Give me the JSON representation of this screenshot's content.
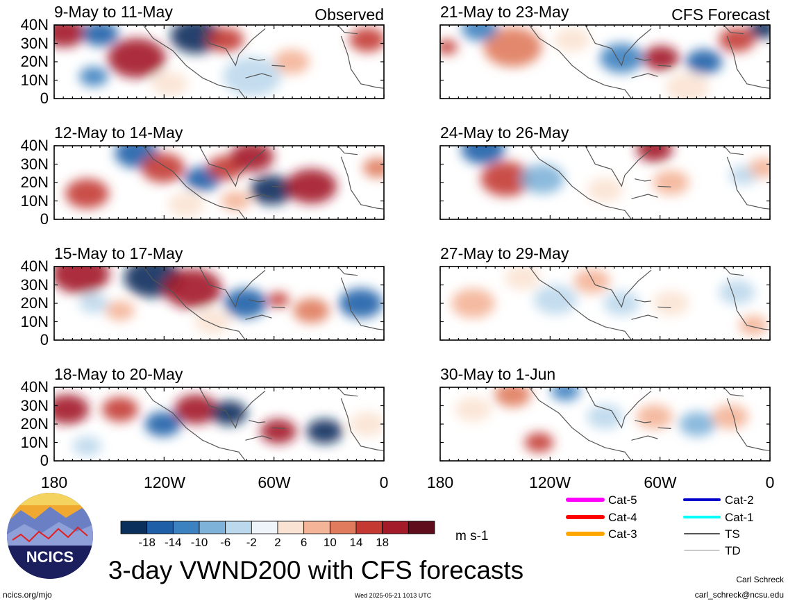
{
  "figure": {
    "title": "3-day VWND200 with CFS forecasts",
    "timestamp": "Wed 2025-05-21 1013 UTC",
    "site": "ncics.org/mjo",
    "author": "Carl Schreck",
    "email": "carl_schreck@ncsu.edu",
    "logo_text": "NCICS"
  },
  "column_labels": {
    "observed": "Observed",
    "forecast": "CFS Forecast"
  },
  "panels": {
    "left": [
      {
        "period": "9-May to 11-May"
      },
      {
        "period": "12-May to 14-May"
      },
      {
        "period": "15-May to 17-May"
      },
      {
        "period": "18-May to 20-May"
      }
    ],
    "right": [
      {
        "period": "21-May to 23-May"
      },
      {
        "period": "24-May to 26-May"
      },
      {
        "period": "27-May to 29-May"
      },
      {
        "period": "30-May to 1-Jun"
      }
    ]
  },
  "axes": {
    "y_ticks": [
      "40N",
      "30N",
      "20N",
      "10N",
      "0"
    ],
    "x_ticks": [
      "180",
      "120W",
      "60W",
      "0"
    ]
  },
  "colorbar": {
    "unit": "m s-1",
    "labels": [
      "-18",
      "-14",
      "-10",
      "-6",
      "-2",
      "2",
      "6",
      "10",
      "14",
      "18"
    ],
    "colors": [
      "#0b2f5c",
      "#1f5fa8",
      "#3d82c0",
      "#7fb2d9",
      "#bcd8ec",
      "#eef4fa",
      "#fbe3d3",
      "#f4b497",
      "#e07b5d",
      "#c43a33",
      "#a31a28",
      "#5f0c1c"
    ]
  },
  "legend": [
    {
      "label": "Cat-5",
      "color": "#ff00ff"
    },
    {
      "label": "Cat-4",
      "color": "#ff0000"
    },
    {
      "label": "Cat-3",
      "color": "#ffa500"
    },
    {
      "label": "Cat-2",
      "color": "#0000cc"
    },
    {
      "label": "Cat-1",
      "color": "#00ffff"
    },
    {
      "label": "TS",
      "color": "#555555"
    },
    {
      "label": "TD",
      "color": "#aaaaaa"
    }
  ],
  "anomaly_blobs": {
    "left": [
      [
        [
          0.03,
          0.1,
          0.06,
          "#a31a28"
        ],
        [
          0.14,
          0.12,
          0.05,
          "#1f5fa8"
        ],
        [
          0.25,
          0.45,
          0.08,
          "#a31a28"
        ],
        [
          0.12,
          0.7,
          0.04,
          "#3d82c0"
        ],
        [
          0.43,
          0.15,
          0.07,
          "#0b2f5c"
        ],
        [
          0.52,
          0.2,
          0.05,
          "#c43a33"
        ],
        [
          0.72,
          0.5,
          0.05,
          "#f4b497"
        ],
        [
          0.95,
          0.2,
          0.05,
          "#c43a33"
        ],
        [
          0.6,
          0.7,
          0.08,
          "#bcd8ec"
        ],
        [
          0.35,
          0.8,
          0.05,
          "#fbe3d3"
        ]
      ],
      [
        [
          0.1,
          0.65,
          0.06,
          "#c43a33"
        ],
        [
          0.25,
          0.1,
          0.06,
          "#1f5fa8"
        ],
        [
          0.33,
          0.3,
          0.06,
          "#c43a33"
        ],
        [
          0.45,
          0.45,
          0.05,
          "#1f5fa8"
        ],
        [
          0.52,
          0.3,
          0.05,
          "#c43a33"
        ],
        [
          0.6,
          0.15,
          0.06,
          "#a31a28"
        ],
        [
          0.66,
          0.6,
          0.06,
          "#0b2f5c"
        ],
        [
          0.78,
          0.55,
          0.07,
          "#a31a28"
        ],
        [
          0.4,
          0.8,
          0.05,
          "#fbe3d3"
        ],
        [
          0.55,
          0.75,
          0.04,
          "#f4b497"
        ],
        [
          0.98,
          0.3,
          0.04,
          "#e07b5d"
        ]
      ],
      [
        [
          0.08,
          0.1,
          0.08,
          "#a31a28"
        ],
        [
          0.3,
          0.15,
          0.08,
          "#0b2f5c"
        ],
        [
          0.42,
          0.3,
          0.08,
          "#a31a28"
        ],
        [
          0.58,
          0.5,
          0.06,
          "#1f5fa8"
        ],
        [
          0.68,
          0.45,
          0.03,
          "#c43a33"
        ],
        [
          0.78,
          0.6,
          0.05,
          "#e07b5d"
        ],
        [
          0.93,
          0.5,
          0.06,
          "#1f5fa8"
        ],
        [
          0.12,
          0.5,
          0.04,
          "#bcd8ec"
        ],
        [
          0.2,
          0.6,
          0.04,
          "#f4b497"
        ],
        [
          0.48,
          0.75,
          0.05,
          "#fbe3d3"
        ]
      ],
      [
        [
          0.04,
          0.3,
          0.06,
          "#a31a28"
        ],
        [
          0.2,
          0.3,
          0.05,
          "#c43a33"
        ],
        [
          0.33,
          0.5,
          0.05,
          "#1f5fa8"
        ],
        [
          0.43,
          0.3,
          0.06,
          "#a31a28"
        ],
        [
          0.53,
          0.35,
          0.05,
          "#0b2f5c"
        ],
        [
          0.68,
          0.6,
          0.05,
          "#a31a28"
        ],
        [
          0.82,
          0.6,
          0.05,
          "#0b2f5c"
        ],
        [
          0.1,
          0.8,
          0.04,
          "#bcd8ec"
        ],
        [
          0.95,
          0.5,
          0.05,
          "#fbe3d3"
        ]
      ]
    ],
    "right": [
      [
        [
          0.02,
          0.3,
          0.03,
          "#c43a33"
        ],
        [
          0.22,
          0.3,
          0.08,
          "#e07b5d"
        ],
        [
          0.12,
          0.05,
          0.05,
          "#3d82c0"
        ],
        [
          0.55,
          0.45,
          0.06,
          "#3d82c0"
        ],
        [
          0.67,
          0.45,
          0.05,
          "#a31a28"
        ],
        [
          0.8,
          0.5,
          0.05,
          "#1f5fa8"
        ],
        [
          0.9,
          0.2,
          0.05,
          "#c43a33"
        ],
        [
          0.98,
          0.05,
          0.04,
          "#0b2f5c"
        ],
        [
          0.4,
          0.2,
          0.05,
          "#fbe3d3"
        ],
        [
          0.75,
          0.85,
          0.06,
          "#fbe3d3"
        ]
      ],
      [
        [
          0.13,
          0.05,
          0.06,
          "#1f5fa8"
        ],
        [
          0.2,
          0.45,
          0.07,
          "#c43a33"
        ],
        [
          0.31,
          0.45,
          0.06,
          "#7fb2d9"
        ],
        [
          0.65,
          0.05,
          0.05,
          "#a31a28"
        ],
        [
          0.5,
          0.6,
          0.05,
          "#fbe3d3"
        ],
        [
          0.7,
          0.5,
          0.05,
          "#f4b497"
        ],
        [
          0.92,
          0.4,
          0.04,
          "#bcd8ec"
        ],
        [
          0.98,
          0.3,
          0.04,
          "#f4b497"
        ]
      ],
      [
        [
          0.1,
          0.5,
          0.06,
          "#f4b497"
        ],
        [
          0.35,
          0.45,
          0.06,
          "#bcd8ec"
        ],
        [
          0.46,
          0.2,
          0.05,
          "#f4b497"
        ],
        [
          0.55,
          0.5,
          0.05,
          "#bcd8ec"
        ],
        [
          0.7,
          0.5,
          0.05,
          "#fbe3d3"
        ],
        [
          0.9,
          0.35,
          0.05,
          "#bcd8ec"
        ],
        [
          0.95,
          0.8,
          0.04,
          "#f4b497"
        ],
        [
          0.25,
          0.15,
          0.05,
          "#fbe3d3"
        ]
      ],
      [
        [
          0.22,
          0.1,
          0.05,
          "#e07b5d"
        ],
        [
          0.3,
          0.75,
          0.04,
          "#c43a33"
        ],
        [
          0.38,
          0.05,
          0.04,
          "#3d82c0"
        ],
        [
          0.5,
          0.4,
          0.05,
          "#bcd8ec"
        ],
        [
          0.65,
          0.4,
          0.05,
          "#f4b497"
        ],
        [
          0.78,
          0.5,
          0.05,
          "#7fb2d9"
        ],
        [
          0.88,
          0.4,
          0.05,
          "#f4b497"
        ],
        [
          0.1,
          0.3,
          0.05,
          "#fbe3d3"
        ]
      ]
    ]
  }
}
